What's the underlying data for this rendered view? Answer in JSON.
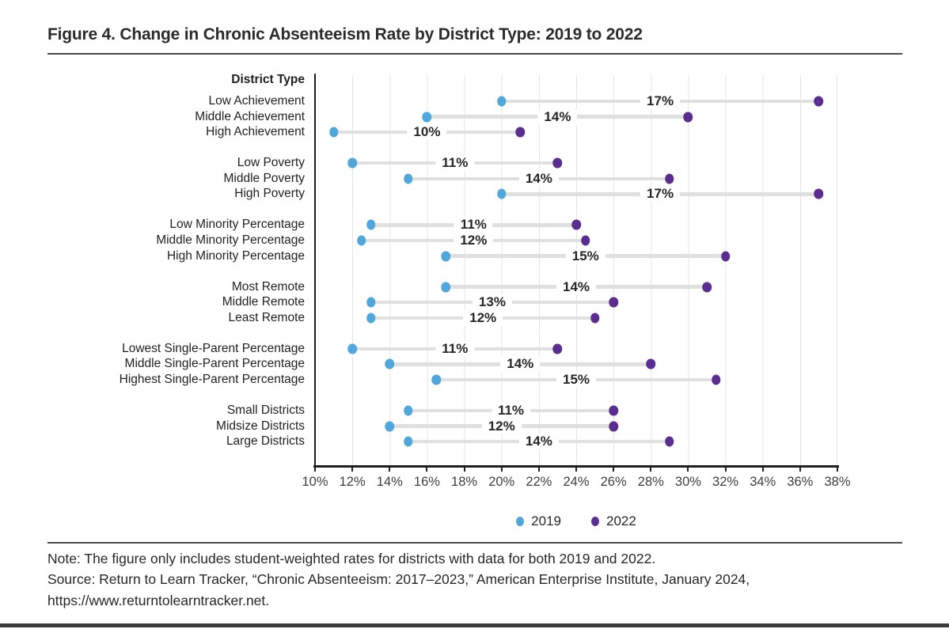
{
  "figure": {
    "title": "Figure 4. Change in Chronic Absenteeism Rate by District Type: 2019 to 2022",
    "column_header": "District Type",
    "note": "Note: The figure only includes student-weighted rates for districts with data for both 2019 and 2022.",
    "source": "Source: Return to Learn Tracker, “Chronic Absenteeism: 2017–2023,” American Enterprise Institute, January 2024, https://www.returntolearntracker.net."
  },
  "colors": {
    "blue_2019": "#4FA7DB",
    "purple_2022": "#5B2D90",
    "connector_gray": "#E0E0E0",
    "rule_gray": "#4A4A4A"
  },
  "chart_data": {
    "type": "dumbbell",
    "title": "Figure 4. Change in Chronic Absenteeism Rate by District Type: 2019 to 2022",
    "xlabel": "",
    "ylabel": "District Type",
    "x_axis": {
      "min": 10,
      "max": 38,
      "step": 2,
      "tick_labels": [
        "10%",
        "12%",
        "14%",
        "16%",
        "18%",
        "20%",
        "22%",
        "24%",
        "26%",
        "28%",
        "30%",
        "32%",
        "34%",
        "36%",
        "38%"
      ],
      "grid": true
    },
    "legend": [
      {
        "label": "2019",
        "color": "#4FA7DB"
      },
      {
        "label": "2022",
        "color": "#5B2D90"
      }
    ],
    "legend_position": "bottom-center",
    "groups": [
      {
        "rows": [
          {
            "label": "Low Achievement",
            "v2019": 20,
            "v2022": 37,
            "change_label": "17%"
          },
          {
            "label": "Middle Achievement",
            "v2019": 16,
            "v2022": 30,
            "change_label": "14%"
          },
          {
            "label": "High Achievement",
            "v2019": 11,
            "v2022": 21,
            "change_label": "10%"
          }
        ]
      },
      {
        "rows": [
          {
            "label": "Low Poverty",
            "v2019": 12,
            "v2022": 23,
            "change_label": "11%"
          },
          {
            "label": "Middle Poverty",
            "v2019": 15,
            "v2022": 29,
            "change_label": "14%"
          },
          {
            "label": "High Poverty",
            "v2019": 20,
            "v2022": 37,
            "change_label": "17%"
          }
        ]
      },
      {
        "rows": [
          {
            "label": "Low Minority Percentage",
            "v2019": 13,
            "v2022": 24,
            "change_label": "11%"
          },
          {
            "label": "Middle Minority Percentage",
            "v2019": 12.5,
            "v2022": 24.5,
            "change_label": "12%"
          },
          {
            "label": "High Minority Percentage",
            "v2019": 17,
            "v2022": 32,
            "change_label": "15%"
          }
        ]
      },
      {
        "rows": [
          {
            "label": "Most Remote",
            "v2019": 17,
            "v2022": 31,
            "change_label": "14%"
          },
          {
            "label": "Middle Remote",
            "v2019": 13,
            "v2022": 26,
            "change_label": "13%"
          },
          {
            "label": "Least Remote",
            "v2019": 13,
            "v2022": 25,
            "change_label": "12%"
          }
        ]
      },
      {
        "rows": [
          {
            "label": "Lowest Single-Parent Percentage",
            "v2019": 12,
            "v2022": 23,
            "change_label": "11%"
          },
          {
            "label": "Middle Single-Parent Percentage",
            "v2019": 14,
            "v2022": 28,
            "change_label": "14%"
          },
          {
            "label": "Highest Single-Parent Percentage",
            "v2019": 16.5,
            "v2022": 31.5,
            "change_label": "15%"
          }
        ]
      },
      {
        "rows": [
          {
            "label": "Small Districts",
            "v2019": 15,
            "v2022": 26,
            "change_label": "11%"
          },
          {
            "label": "Midsize Districts",
            "v2019": 14,
            "v2022": 26,
            "change_label": "12%"
          },
          {
            "label": "Large Districts",
            "v2019": 15,
            "v2022": 29,
            "change_label": "14%"
          }
        ]
      }
    ]
  }
}
